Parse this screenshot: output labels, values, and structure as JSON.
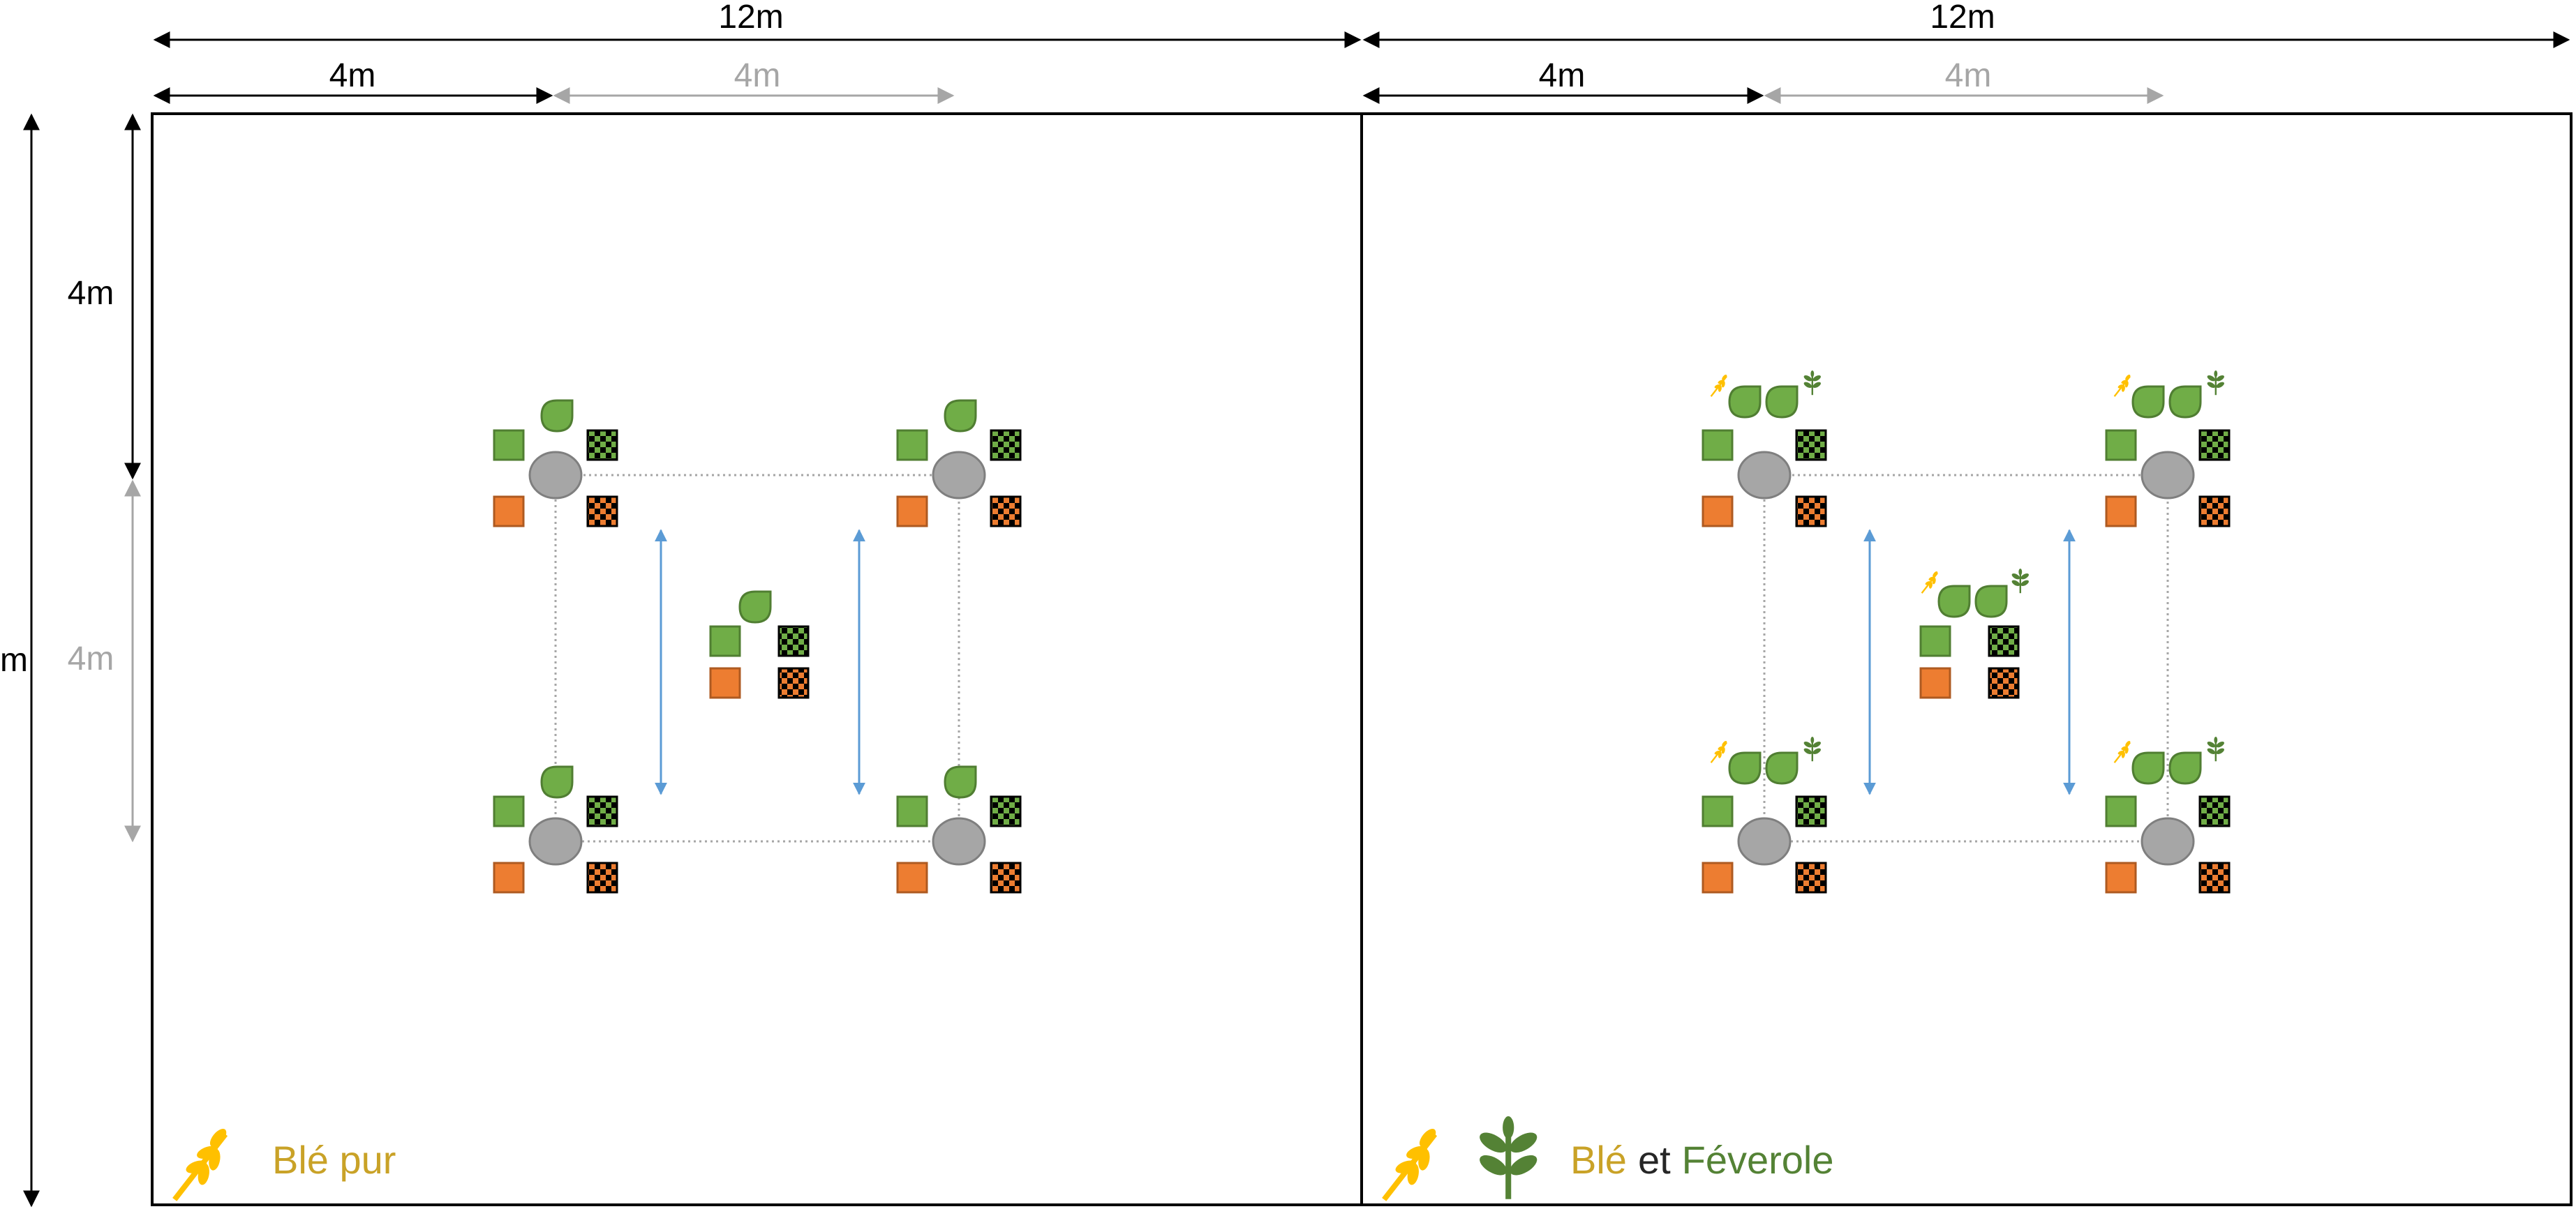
{
  "dimensions": {
    "top_width_left": "12m",
    "top_width_right": "12m",
    "spacing_left_black": "4m",
    "spacing_left_gray": "4m",
    "spacing_right_black": "4m",
    "spacing_right_gray": "4m",
    "left_height_full": "m",
    "left_height_black": "4m",
    "left_height_gray": "4m"
  },
  "legend": {
    "left": {
      "ble": "Blé pur"
    },
    "right": {
      "ble": "Blé",
      "et": "et",
      "feverole": "Féverole"
    }
  },
  "colors": {
    "border": "#000000",
    "dim_gray": "#a6a6a6",
    "pole": "#a6a6a6",
    "pole_stroke": "#7f7f7f",
    "green": "#70ad47",
    "green_dark": "#507e32",
    "orange": "#ed7d31",
    "orange_dark": "#ae5a21",
    "arrow_blue": "#5b9bd5",
    "wheat": "#ffc000",
    "legend_ble_text": "#c9a227",
    "legend_fev_text": "#548235"
  },
  "icons": [
    "leaf-icon",
    "wheat-icon",
    "bean-sprout-icon",
    "green-square-icon",
    "orange-square-icon",
    "checker-green-icon",
    "checker-orange-icon",
    "pole-circle-icon"
  ]
}
